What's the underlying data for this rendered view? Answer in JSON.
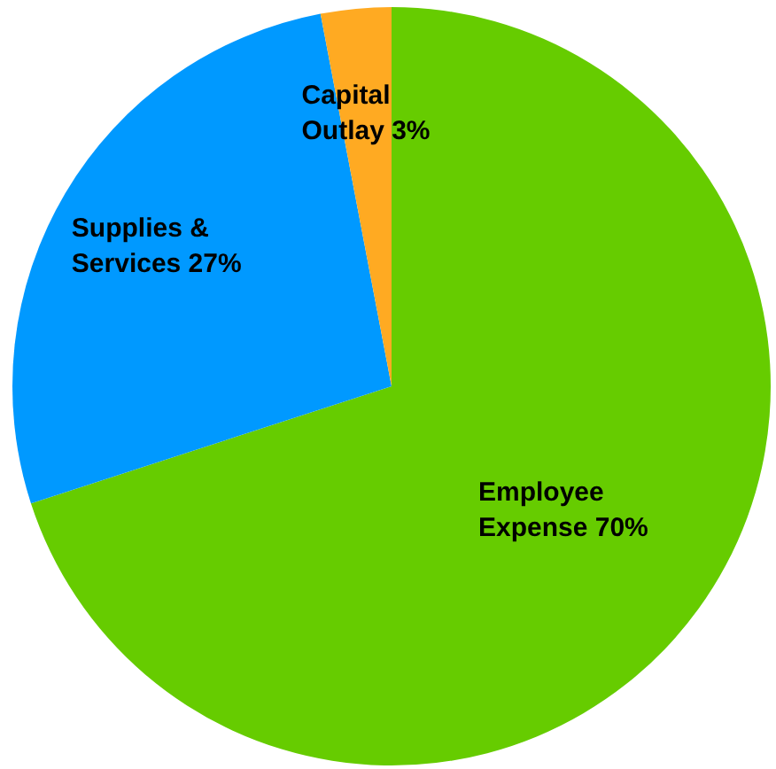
{
  "chart_data": {
    "type": "pie",
    "categories": [
      "Employee Expense",
      "Supplies & Services",
      "Capital Outlay"
    ],
    "values": [
      70,
      27,
      3
    ],
    "colors": [
      "#66cc00",
      "#0099ff",
      "#ffaa22"
    ],
    "value_labels": [
      "70%",
      "27%",
      "3%"
    ],
    "legend": false
  }
}
